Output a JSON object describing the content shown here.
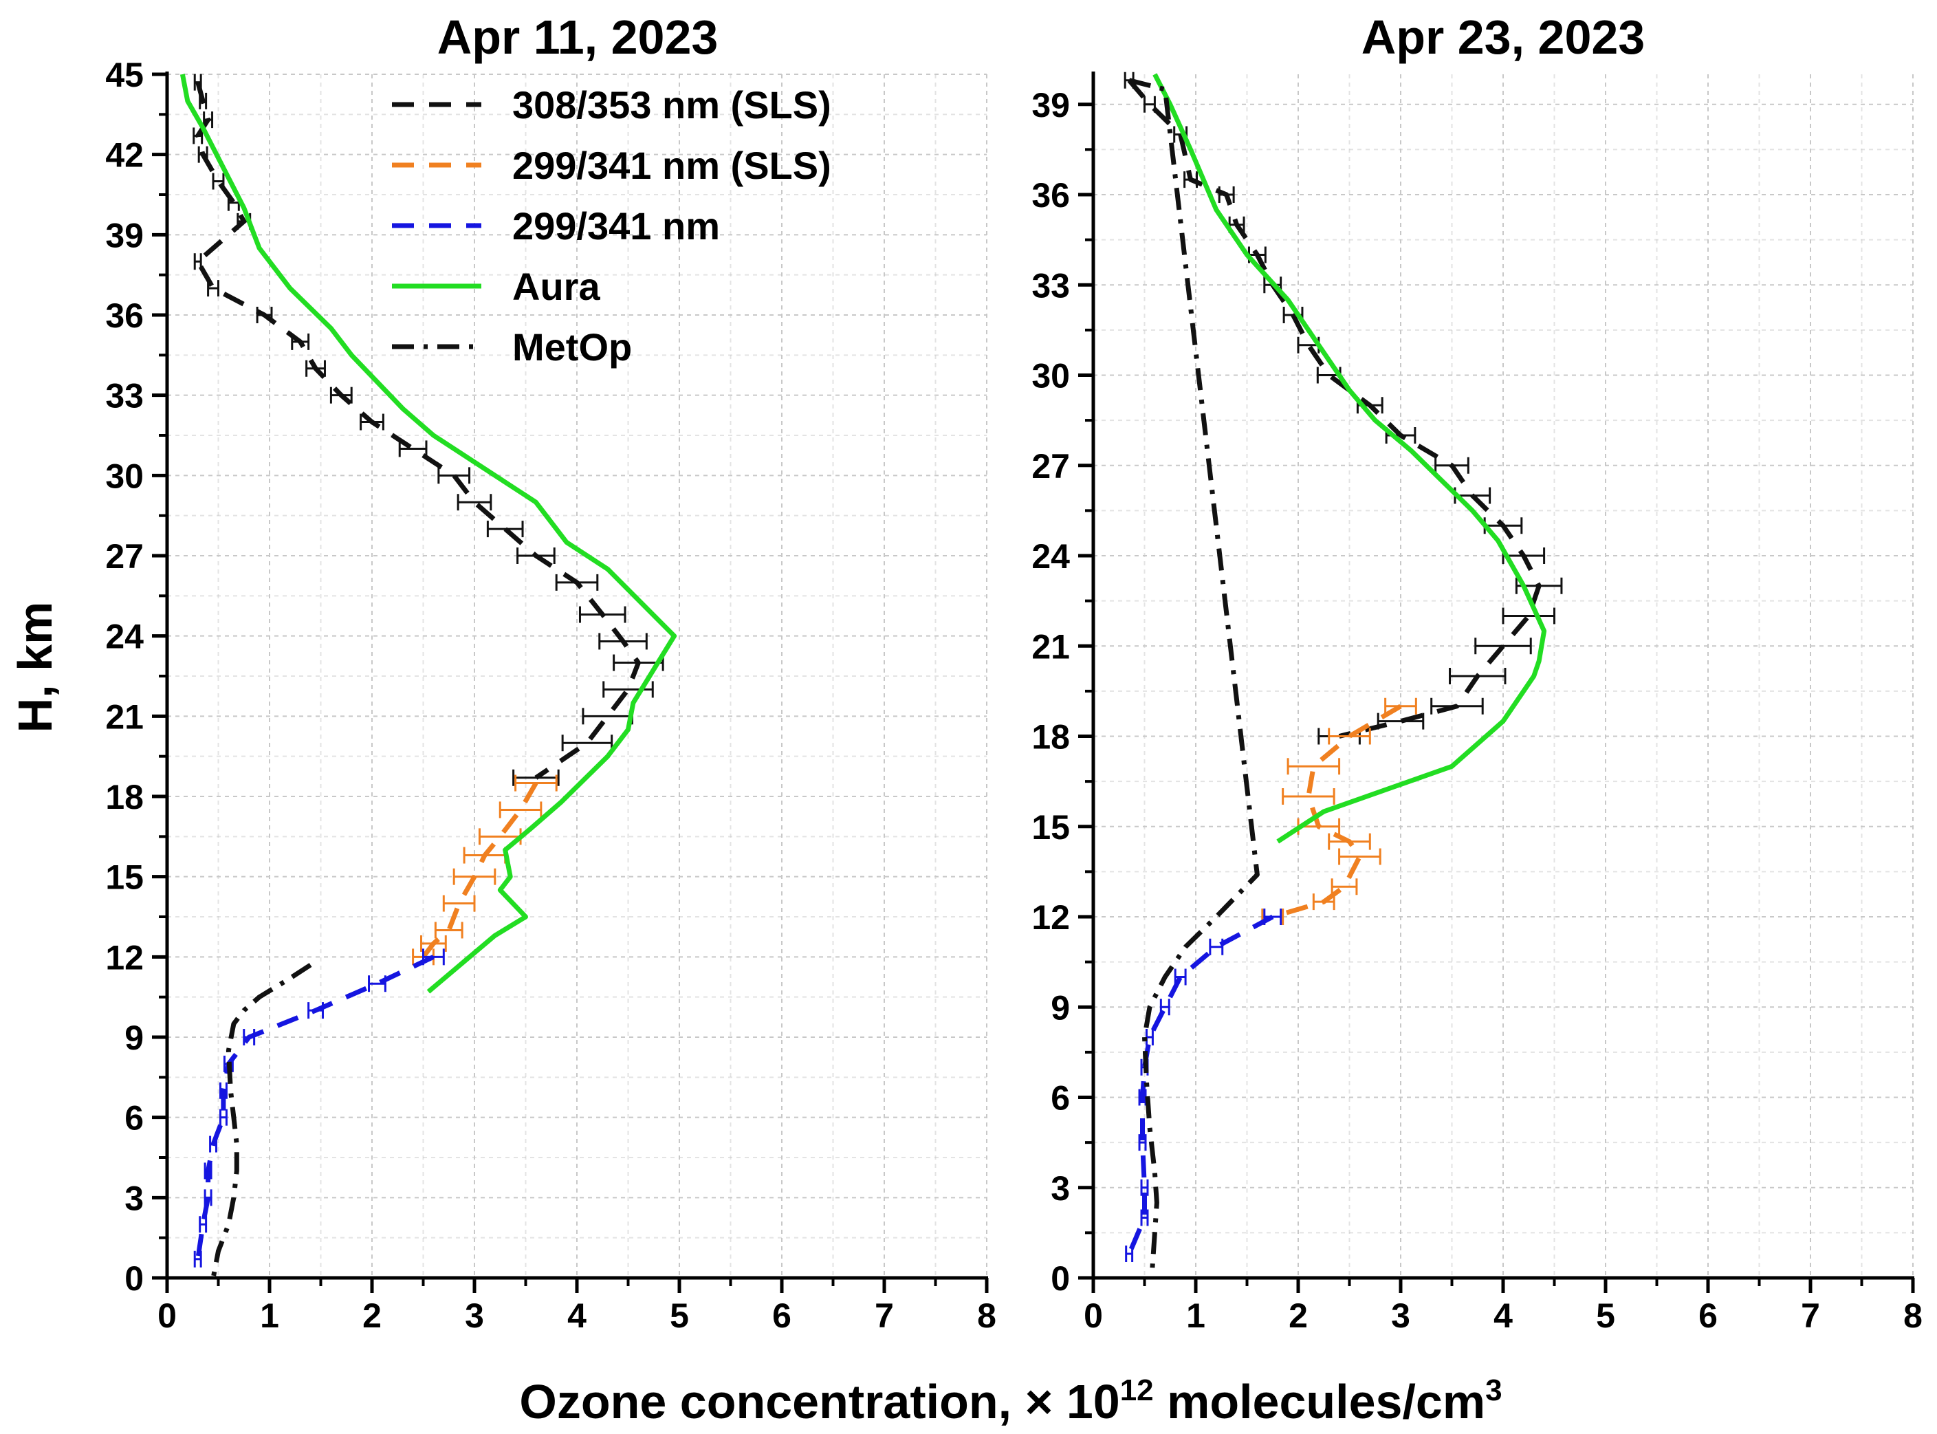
{
  "figure": {
    "xlabel_main": "Ozone concentration, × 10",
    "xlabel_exponent": "12",
    "xlabel_tail": " molecules/cm",
    "xlabel_unit_exponent": "3",
    "ylabel": "H, km"
  },
  "legend": {
    "items": [
      {
        "key": "sls308",
        "label": "308/353 nm (SLS)",
        "color": "#111111",
        "style": "dash"
      },
      {
        "key": "sls299",
        "label": "299/341 nm (SLS)",
        "color": "#f08020",
        "style": "dash"
      },
      {
        "key": "n299",
        "label": "299/341 nm",
        "color": "#1515e0",
        "style": "dash"
      },
      {
        "key": "aura",
        "label": "Aura",
        "color": "#22dd22",
        "style": "solid"
      },
      {
        "key": "metop",
        "label": "MetOp",
        "color": "#111111",
        "style": "dashdot"
      }
    ]
  },
  "chart_data": [
    {
      "type": "line",
      "title": "Apr 11,  2023",
      "xlabel": "Ozone concentration, × 10^12 molecules/cm^3",
      "ylabel": "H, km",
      "xlim": [
        0,
        8
      ],
      "ylim": [
        0,
        45
      ],
      "xticks": [
        0,
        1,
        2,
        3,
        4,
        5,
        6,
        7,
        8
      ],
      "yticks": [
        0,
        3,
        6,
        9,
        12,
        15,
        18,
        21,
        24,
        27,
        30,
        33,
        36,
        39,
        42,
        45
      ],
      "tick_labels_x": [
        "0",
        "1",
        "2",
        "3",
        "4",
        "5",
        "6",
        "7",
        "8"
      ],
      "tick_labels_y": [
        "0",
        "3",
        "6",
        "9",
        "12",
        "15",
        "18",
        "21",
        "24",
        "27",
        "30",
        "33",
        "36",
        "39",
        "42",
        "45"
      ],
      "grid": true,
      "series": [
        {
          "name": "308/353 nm (SLS)",
          "key": "sls308",
          "x": [
            0.3,
            0.35,
            0.4,
            0.3,
            0.35,
            0.5,
            0.65,
            0.75,
            0.3,
            0.45,
            0.95,
            1.3,
            1.45,
            1.7,
            2.0,
            2.4,
            2.8,
            3.0,
            3.3,
            3.6,
            4.0,
            4.25,
            4.45,
            4.6,
            4.5,
            4.3,
            4.1,
            3.6
          ],
          "y": [
            44.7,
            44.0,
            43.3,
            42.7,
            42.0,
            41.0,
            40.2,
            39.5,
            38.0,
            37.0,
            36.0,
            35.0,
            34.0,
            33.0,
            32.0,
            31.0,
            30.0,
            29.0,
            28.0,
            27.0,
            26.0,
            24.8,
            23.8,
            23.0,
            22.0,
            21.0,
            20.0,
            18.7
          ],
          "xerr": [
            0.03,
            0.03,
            0.04,
            0.04,
            0.04,
            0.05,
            0.05,
            0.06,
            0.03,
            0.05,
            0.07,
            0.08,
            0.09,
            0.1,
            0.11,
            0.13,
            0.15,
            0.16,
            0.17,
            0.18,
            0.2,
            0.22,
            0.23,
            0.24,
            0.24,
            0.24,
            0.24,
            0.22
          ]
        },
        {
          "name": "299/341 nm (SLS)",
          "key": "sls299",
          "x": [
            3.6,
            3.45,
            3.25,
            3.1,
            3.0,
            2.85,
            2.75,
            2.6,
            2.5
          ],
          "y": [
            18.5,
            17.5,
            16.5,
            15.8,
            15.0,
            14.0,
            13.0,
            12.5,
            12.0
          ],
          "xerr": [
            0.2,
            0.2,
            0.2,
            0.2,
            0.2,
            0.15,
            0.13,
            0.12,
            0.1
          ]
        },
        {
          "name": "299/341 nm",
          "key": "n299",
          "x": [
            2.6,
            2.05,
            1.45,
            0.8,
            0.6,
            0.55,
            0.55,
            0.45,
            0.4,
            0.4,
            0.35,
            0.3
          ],
          "y": [
            12.0,
            11.0,
            10.0,
            9.0,
            8.0,
            7.0,
            6.0,
            5.0,
            4.0,
            3.0,
            2.0,
            0.7
          ],
          "xerr": [
            0.1,
            0.08,
            0.07,
            0.05,
            0.04,
            0.03,
            0.03,
            0.03,
            0.03,
            0.03,
            0.03,
            0.03
          ]
        },
        {
          "name": "Aura",
          "key": "aura",
          "x": [
            0.15,
            0.2,
            0.35,
            0.55,
            0.75,
            0.9,
            1.2,
            1.6,
            1.8,
            2.3,
            2.6,
            3.2,
            3.6,
            3.9,
            4.3,
            4.95,
            4.55,
            4.5,
            4.3,
            3.85,
            3.55,
            3.3,
            3.35,
            3.25,
            3.5,
            3.2,
            2.55
          ],
          "y": [
            45.0,
            44.0,
            43.0,
            41.5,
            40.0,
            38.5,
            37.0,
            35.5,
            34.5,
            32.5,
            31.5,
            30.0,
            29.0,
            27.5,
            26.5,
            24.0,
            21.5,
            20.5,
            19.5,
            17.8,
            16.8,
            16.0,
            15.0,
            14.5,
            13.5,
            12.8,
            10.7
          ]
        },
        {
          "name": "MetOp",
          "key": "metop",
          "x": [
            1.4,
            1.2,
            0.9,
            0.75,
            0.65,
            0.6,
            0.62,
            0.65,
            0.68,
            0.68,
            0.65,
            0.6,
            0.5,
            0.45
          ],
          "y": [
            11.7,
            11.2,
            10.5,
            10.0,
            9.5,
            8.5,
            7.0,
            6.0,
            5.0,
            4.0,
            3.0,
            2.0,
            1.0,
            0.0
          ]
        }
      ]
    },
    {
      "type": "line",
      "title": "Apr 23, 2023",
      "xlabel": "Ozone concentration, × 10^12 molecules/cm^3",
      "ylabel": "H, km",
      "xlim": [
        0,
        8
      ],
      "ylim": [
        0,
        40
      ],
      "xticks": [
        0,
        1,
        2,
        3,
        4,
        5,
        6,
        7,
        8
      ],
      "yticks": [
        0,
        3,
        6,
        9,
        12,
        15,
        18,
        21,
        24,
        27,
        30,
        33,
        36,
        39
      ],
      "tick_labels_x": [
        "0",
        "1",
        "2",
        "3",
        "4",
        "5",
        "6",
        "7",
        "8"
      ],
      "tick_labels_y": [
        "0",
        "3",
        "6",
        "9",
        "12",
        "15",
        "18",
        "21",
        "24",
        "27",
        "30",
        "33",
        "36",
        "39"
      ],
      "grid": true,
      "series": [
        {
          "name": "308/353 nm (SLS)",
          "key": "sls308",
          "x": [
            0.35,
            0.55,
            0.85,
            0.95,
            1.3,
            1.4,
            1.6,
            1.75,
            1.95,
            2.1,
            2.3,
            2.7,
            3.0,
            3.5,
            3.7,
            4.0,
            4.2,
            4.35,
            4.25,
            4.0,
            3.75,
            3.55,
            3.0,
            2.4
          ],
          "y": [
            39.8,
            39.0,
            38.0,
            36.5,
            36.0,
            35.0,
            34.0,
            33.0,
            32.0,
            31.0,
            30.0,
            29.0,
            28.0,
            27.0,
            26.0,
            25.0,
            24.0,
            23.0,
            22.0,
            21.0,
            20.0,
            19.0,
            18.5,
            18.0
          ],
          "xerr": [
            0.04,
            0.05,
            0.06,
            0.06,
            0.07,
            0.07,
            0.08,
            0.08,
            0.09,
            0.1,
            0.11,
            0.12,
            0.14,
            0.16,
            0.17,
            0.18,
            0.2,
            0.22,
            0.25,
            0.27,
            0.27,
            0.25,
            0.22,
            0.2
          ]
        },
        {
          "name": "299/341 nm (SLS)",
          "key": "sls299",
          "x": [
            3.0,
            2.5,
            2.15,
            2.1,
            2.2,
            2.5,
            2.6,
            2.45,
            2.25,
            1.75
          ],
          "y": [
            19.0,
            18.0,
            17.0,
            16.0,
            15.0,
            14.5,
            14.0,
            13.0,
            12.5,
            12.0
          ],
          "xerr": [
            0.15,
            0.2,
            0.25,
            0.25,
            0.2,
            0.2,
            0.2,
            0.12,
            0.1,
            0.1
          ]
        },
        {
          "name": "299/341 nm",
          "key": "n299",
          "x": [
            1.75,
            1.2,
            0.85,
            0.7,
            0.55,
            0.5,
            0.48,
            0.48,
            0.5,
            0.5,
            0.35
          ],
          "y": [
            12.0,
            11.0,
            10.0,
            9.0,
            8.0,
            7.0,
            6.0,
            4.5,
            3.0,
            2.0,
            0.8
          ],
          "xerr": [
            0.08,
            0.06,
            0.05,
            0.04,
            0.03,
            0.03,
            0.03,
            0.03,
            0.03,
            0.03,
            0.03
          ]
        },
        {
          "name": "Aura",
          "key": "aura",
          "x": [
            0.6,
            0.75,
            0.95,
            1.2,
            1.5,
            1.9,
            2.2,
            2.4,
            2.5,
            2.75,
            3.1,
            3.4,
            3.7,
            3.95,
            4.2,
            4.4,
            4.35,
            4.3,
            4.0,
            3.5,
            2.25,
            1.8
          ],
          "y": [
            40.0,
            39.0,
            37.5,
            35.5,
            34.0,
            32.5,
            31.0,
            30.0,
            29.5,
            28.5,
            27.5,
            26.5,
            25.5,
            24.5,
            23.0,
            21.5,
            20.5,
            20.0,
            18.5,
            17.0,
            15.5,
            14.5
          ]
        },
        {
          "name": "MetOp",
          "key": "metop",
          "x": [
            0.35,
            0.7,
            1.6,
            1.2,
            0.9,
            0.7,
            0.55,
            0.5,
            0.52,
            0.55,
            0.6,
            0.62,
            0.6,
            0.58,
            0.57
          ],
          "y": [
            39.8,
            39.5,
            13.4,
            12.0,
            11.0,
            10.0,
            9.0,
            8.0,
            6.5,
            5.0,
            3.5,
            2.5,
            1.5,
            0.5,
            0.0
          ]
        }
      ]
    }
  ]
}
